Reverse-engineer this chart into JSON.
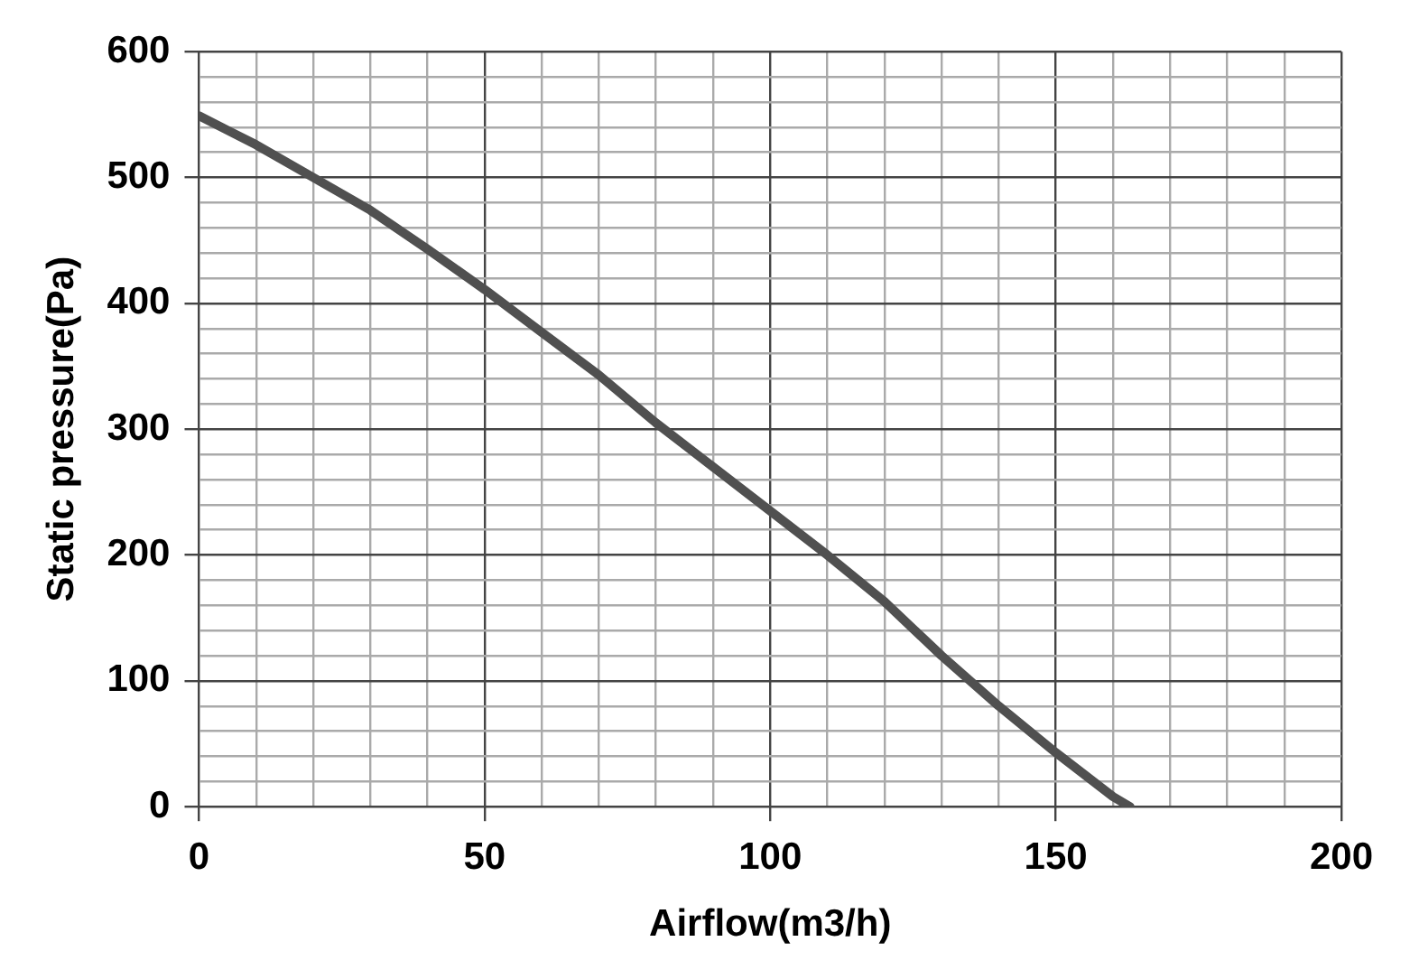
{
  "chart_data": {
    "type": "line",
    "xlabel": "Airflow(m3/h)",
    "ylabel": "Static pressure(Pa)",
    "x": [
      0,
      10,
      20,
      30,
      40,
      50,
      60,
      70,
      80,
      90,
      100,
      110,
      120,
      130,
      140,
      150,
      160,
      163
    ],
    "series": [
      {
        "color": "#505050",
        "values": [
          549,
          526,
          500,
          474,
          443,
          411,
          377,
          343,
          305,
          270,
          235,
          200,
          163,
          120,
          80,
          43,
          8,
          0
        ]
      }
    ],
    "xlim": [
      0,
      200
    ],
    "ylim": [
      0,
      600
    ],
    "xticks": [
      0,
      {
        "value": 10,
        "label": null
      },
      {
        "value": 20,
        "label": null
      },
      {
        "value": 30,
        "label": null
      },
      {
        "value": 40,
        "label": null
      },
      50,
      {
        "value": 60,
        "label": null
      },
      {
        "value": 70,
        "label": null
      },
      {
        "value": 80,
        "label": null
      },
      {
        "value": 90,
        "label": null
      },
      100,
      {
        "value": 110,
        "label": null
      },
      {
        "value": 120,
        "label": null
      },
      {
        "value": 130,
        "label": null
      },
      {
        "value": 140,
        "label": null
      },
      150,
      {
        "value": 160,
        "label": null
      },
      {
        "value": 170,
        "label": null
      },
      {
        "value": 180,
        "label": null
      },
      {
        "value": 190,
        "label": null
      },
      200
    ],
    "yticks": [
      0,
      {
        "value": 20,
        "label": null
      },
      {
        "value": 40,
        "label": null
      },
      {
        "value": 60,
        "label": null
      },
      {
        "value": 80,
        "label": null
      },
      100,
      {
        "value": 120,
        "label": null
      },
      {
        "value": 140,
        "label": null
      },
      {
        "value": 160,
        "label": null
      },
      {
        "value": 180,
        "label": null
      },
      200,
      {
        "value": 220,
        "label": null
      },
      {
        "value": 240,
        "label": null
      },
      {
        "value": 260,
        "label": null
      },
      {
        "value": 280,
        "label": null
      },
      300,
      {
        "value": 320,
        "label": null
      },
      {
        "value": 340,
        "label": null
      },
      {
        "value": 360,
        "label": null
      },
      {
        "value": 380,
        "label": null
      },
      400,
      {
        "value": 420,
        "label": null
      },
      {
        "value": 440,
        "label": null
      },
      {
        "value": 460,
        "label": null
      },
      {
        "value": 480,
        "label": null
      },
      500,
      {
        "value": 520,
        "label": null
      },
      {
        "value": 540,
        "label": null
      },
      {
        "value": 560,
        "label": null
      },
      {
        "value": 580,
        "label": null
      },
      600
    ],
    "grid": true,
    "legend": false,
    "marker": "none",
    "line_style": "solid"
  }
}
